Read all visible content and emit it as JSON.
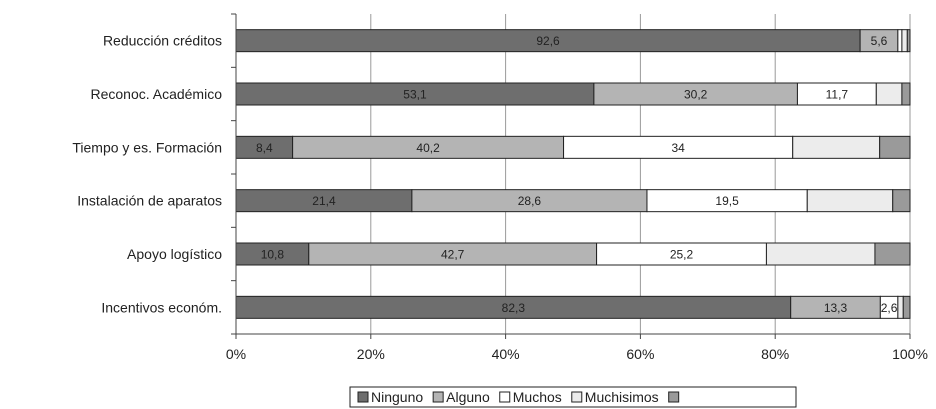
{
  "chart_data": {
    "type": "bar",
    "orientation": "horizontal",
    "stacked": "percent",
    "categories": [
      "Reducción créditos",
      "Reconoc. Académico",
      "Tiempo y es. Formación",
      "Instalación de aparatos",
      "Apoyo logístico",
      "Incentivos económ."
    ],
    "series": [
      {
        "name": "Ninguno",
        "color": "#6e6e6e",
        "values": [
          92.6,
          53.1,
          8.4,
          21.4,
          10.8,
          82.3
        ],
        "labels": [
          "92,6",
          "53,1",
          "8,4",
          "21,4",
          "10,8",
          "82,3"
        ]
      },
      {
        "name": "Alguno",
        "color": "#b4b4b4",
        "values": [
          5.6,
          30.2,
          40.2,
          28.6,
          42.7,
          13.3
        ],
        "labels": [
          "5,6",
          "30,2",
          "40,2",
          "28,6",
          "42,7",
          "13,3"
        ]
      },
      {
        "name": "Muchos",
        "color": "#ffffff",
        "values": [
          0.6,
          11.7,
          34,
          19.5,
          25.2,
          2.6
        ],
        "labels": [
          "",
          "11,7",
          "34",
          "19,5",
          "25,2",
          "2,6"
        ]
      },
      {
        "name": "Muchisimos",
        "color": "#ececec",
        "values": [
          0.8,
          3.8,
          12.9,
          10.4,
          16.1,
          0.8
        ],
        "labels": [
          "",
          "",
          "",
          "",
          "",
          ""
        ]
      },
      {
        "name": "",
        "color": "#9a9a9a",
        "values": [
          0.4,
          1.2,
          4.5,
          2.1,
          5.2,
          1.0
        ],
        "labels": [
          "",
          "",
          "",
          "",
          "",
          ""
        ]
      }
    ],
    "xaxis": {
      "ticks": [
        0,
        20,
        40,
        60,
        80,
        100
      ],
      "tick_labels": [
        "0%",
        "20%",
        "40%",
        "60%",
        "80%",
        "100%"
      ]
    },
    "xlim": [
      0,
      100
    ],
    "grid": "vertical",
    "legend_position": "bottom",
    "title": "",
    "xlabel": "",
    "ylabel": ""
  }
}
